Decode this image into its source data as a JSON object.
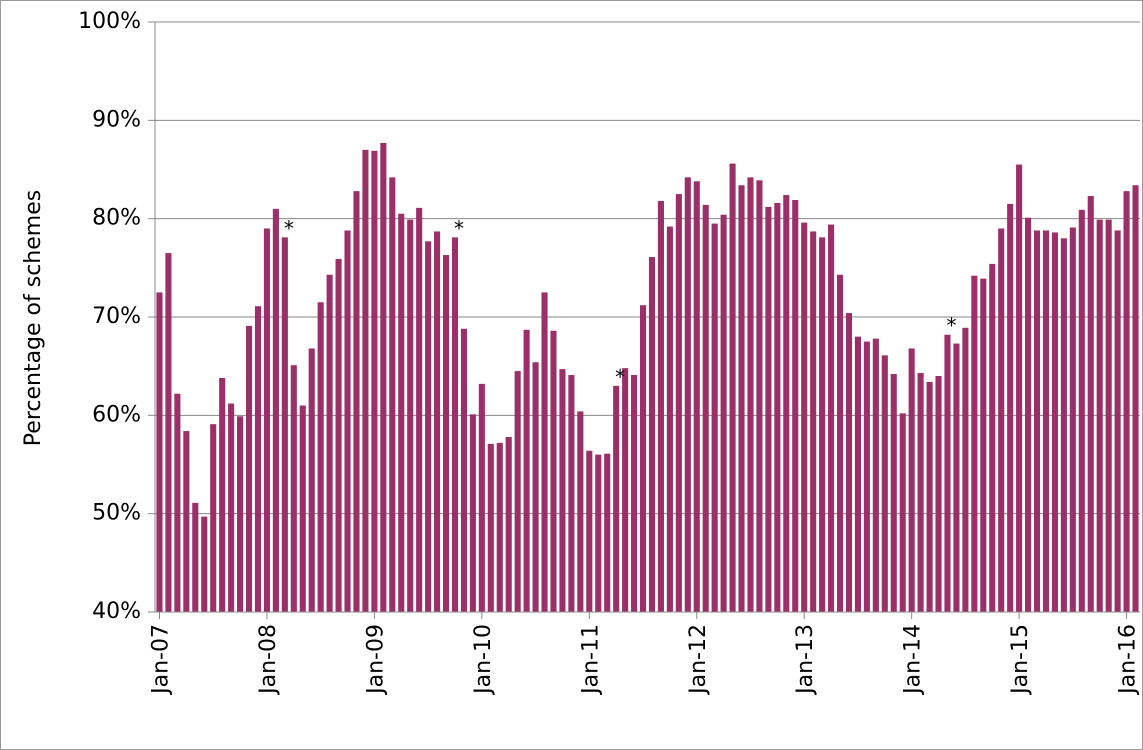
{
  "chart_data": {
    "type": "bar",
    "y_label": "Percentage of schemes",
    "color": "#9b2f68",
    "grid": true,
    "ylim": [
      40,
      100
    ],
    "yticks": [
      {
        "value": 40,
        "label": "40%"
      },
      {
        "value": 50,
        "label": "50%"
      },
      {
        "value": 60,
        "label": "60%"
      },
      {
        "value": 70,
        "label": "70%"
      },
      {
        "value": 80,
        "label": "80%"
      },
      {
        "value": 90,
        "label": "90%"
      },
      {
        "value": 100,
        "label": "100%"
      }
    ],
    "categories": [
      "Jan-07",
      null,
      null,
      null,
      null,
      null,
      null,
      null,
      null,
      null,
      null,
      null,
      "Jan-08",
      null,
      null,
      null,
      null,
      null,
      null,
      null,
      null,
      null,
      null,
      null,
      "Jan-09",
      null,
      null,
      null,
      null,
      null,
      null,
      null,
      null,
      null,
      null,
      null,
      "Jan-10",
      null,
      null,
      null,
      null,
      null,
      null,
      null,
      null,
      null,
      null,
      null,
      "Jan-11",
      null,
      null,
      null,
      null,
      null,
      null,
      null,
      null,
      null,
      null,
      null,
      "Jan-12",
      null,
      null,
      null,
      null,
      null,
      null,
      null,
      null,
      null,
      null,
      null,
      "Jan-13",
      null,
      null,
      null,
      null,
      null,
      null,
      null,
      null,
      null,
      null,
      null,
      "Jan-14",
      null,
      null,
      null,
      null,
      null,
      null,
      null,
      null,
      null,
      null,
      null,
      "Jan-15",
      null,
      null,
      null,
      null,
      null,
      null,
      null,
      null,
      null,
      null,
      null,
      "Jan-16",
      null
    ],
    "values": [
      72.5,
      76.5,
      62.2,
      58.4,
      51.1,
      49.7,
      59.1,
      63.8,
      61.2,
      59.9,
      69.1,
      71.1,
      79.0,
      81.0,
      78.1,
      65.1,
      61.0,
      66.8,
      71.5,
      74.3,
      75.9,
      78.8,
      82.8,
      87.0,
      86.9,
      87.7,
      84.2,
      80.5,
      79.9,
      81.1,
      77.7,
      78.7,
      76.3,
      78.1,
      68.8,
      60.1,
      63.2,
      57.1,
      57.2,
      57.8,
      64.5,
      68.7,
      65.4,
      72.5,
      68.6,
      64.7,
      64.1,
      60.4,
      56.4,
      56.0,
      56.1,
      63.0,
      64.8,
      64.1,
      71.2,
      76.1,
      81.8,
      79.2,
      82.5,
      84.2,
      83.8,
      81.4,
      79.5,
      80.4,
      85.6,
      83.4,
      84.2,
      83.9,
      81.2,
      81.6,
      82.4,
      81.9,
      79.6,
      78.7,
      78.1,
      79.4,
      74.3,
      70.4,
      68.0,
      67.5,
      67.8,
      66.1,
      64.2,
      60.2,
      66.8,
      64.3,
      63.4,
      64.0,
      68.2,
      67.3,
      68.9,
      74.2,
      73.9,
      75.4,
      79.0,
      81.5,
      85.5,
      80.1,
      78.8,
      78.8,
      78.6,
      78.0,
      79.1,
      80.9,
      82.3,
      79.9,
      79.9,
      78.8,
      82.8,
      83.4
    ],
    "annotations": [
      {
        "text": "*",
        "category_index": 14
      },
      {
        "text": "*",
        "category_index": 33
      },
      {
        "text": "*",
        "category_index": 51
      },
      {
        "text": "*",
        "category_index": 88
      }
    ]
  }
}
